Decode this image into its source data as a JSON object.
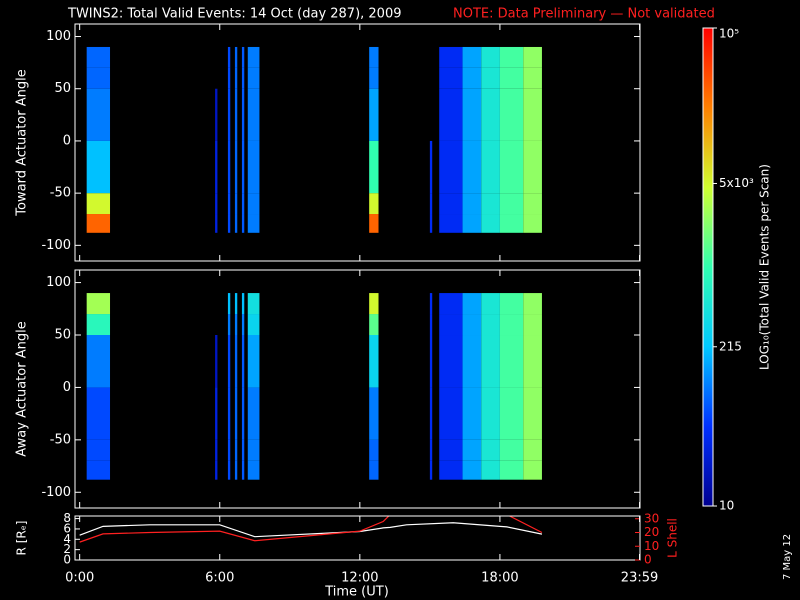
{
  "chart_data": {
    "type": "spectrogram",
    "title": "TWINS2: Total Valid Events: 14 Oct (day 287), 2009",
    "note": "NOTE: Data Preliminary — Not validated",
    "xlabel": "Time (UT)",
    "xlim": [
      -0.2,
      24
    ],
    "xticks": [
      {
        "value": 0,
        "label": "0:00"
      },
      {
        "value": 6,
        "label": "6:00"
      },
      {
        "value": 12,
        "label": "12:00"
      },
      {
        "value": 18,
        "label": "18:00"
      },
      {
        "value": 23.98,
        "label": "23:59"
      }
    ],
    "ylim": [
      -115,
      112
    ],
    "yticks": [
      -100,
      -50,
      0,
      50,
      100
    ],
    "angle_edges": [
      -88,
      -70,
      -50,
      0,
      50,
      70,
      90
    ],
    "band_edges": [
      [
        0.3,
        1.3
      ],
      [
        5.8,
        5.9
      ],
      [
        6.35,
        6.45
      ],
      [
        6.65,
        6.75
      ],
      [
        6.95,
        7.05
      ],
      [
        7.2,
        7.7
      ],
      [
        12.4,
        12.8
      ],
      [
        15.0,
        15.1
      ],
      [
        15.4,
        16.4
      ],
      [
        16.4,
        17.2
      ],
      [
        17.2,
        18.0
      ],
      [
        18.0,
        19.0
      ],
      [
        19.0,
        19.8
      ]
    ],
    "panels": [
      {
        "ylabel": "Toward Actuator Angle",
        "values": [
          [
            30000,
            5000,
            200,
            100,
            80,
            80
          ],
          [
            30,
            30,
            30,
            20,
            null,
            null
          ],
          [
            60,
            60,
            60,
            60,
            60,
            60
          ],
          [
            80,
            80,
            80,
            80,
            80,
            80
          ],
          [
            70,
            70,
            70,
            70,
            70,
            70
          ],
          [
            100,
            100,
            100,
            100,
            100,
            100
          ],
          [
            30000,
            5000,
            1000,
            150,
            100,
            100
          ],
          [
            40,
            40,
            40,
            null,
            null,
            null
          ],
          [
            40,
            40,
            40,
            40,
            40,
            40
          ],
          [
            150,
            150,
            150,
            150,
            150,
            150
          ],
          [
            500,
            500,
            500,
            500,
            500,
            500
          ],
          [
            1200,
            1200,
            1200,
            1200,
            1200,
            1200
          ],
          [
            2500,
            2500,
            2500,
            2500,
            2500,
            2500
          ]
        ]
      },
      {
        "ylabel": "Away Actuator Angle",
        "values": [
          [
            60,
            60,
            60,
            100,
            800,
            3000
          ],
          [
            30,
            30,
            30,
            20,
            null,
            null
          ],
          [
            60,
            60,
            60,
            60,
            100,
            200
          ],
          [
            80,
            80,
            80,
            80,
            100,
            200
          ],
          [
            70,
            70,
            70,
            70,
            100,
            200
          ],
          [
            100,
            100,
            100,
            150,
            300,
            400
          ],
          [
            80,
            80,
            100,
            300,
            1500,
            5000
          ],
          [
            40,
            40,
            40,
            40,
            40,
            40
          ],
          [
            40,
            40,
            40,
            40,
            40,
            40
          ],
          [
            150,
            150,
            150,
            150,
            150,
            150
          ],
          [
            500,
            500,
            500,
            500,
            500,
            500
          ],
          [
            1200,
            1200,
            1200,
            1200,
            1200,
            1200
          ],
          [
            2500,
            2500,
            2500,
            2500,
            2500,
            2500
          ]
        ]
      }
    ],
    "colorbar": {
      "label": "LOG₁₀(Total Valid Events per Scan)",
      "lim": [
        10,
        100000
      ],
      "log": true,
      "ticks": [
        10,
        215,
        {
          "value": 5000,
          "label": "5x10³"
        },
        {
          "value": 100000,
          "label": "10⁵"
        }
      ],
      "colormap": [
        "#000090",
        "#0030ff",
        "#00c8ff",
        "#30ffb0",
        "#d0ff30",
        "#ff8000",
        "#ff0000"
      ]
    },
    "orbit": {
      "x": [
        0,
        1,
        3,
        6,
        7.5,
        12,
        13,
        13.3,
        14,
        16,
        18,
        18.3,
        19.8
      ],
      "ylabel": "R [Rₑ]",
      "y2label": "L Shell",
      "ylim": [
        0,
        8.5
      ],
      "yticks": [
        0,
        2,
        4,
        6,
        8
      ],
      "y2lim": [
        0,
        32
      ],
      "y2ticks": [
        0,
        10,
        20,
        30
      ],
      "series": [
        {
          "name": "R",
          "color": "#ffffff",
          "values": [
            4.8,
            6.5,
            6.8,
            6.8,
            4.5,
            5.5,
            6.2,
            6.3,
            6.8,
            7.2,
            6.5,
            6.4,
            5.0
          ]
        },
        {
          "name": "L Shell",
          "color": "#ff2020",
          "axis": "y2",
          "values": [
            13,
            19,
            20,
            21,
            14,
            21,
            28,
            33,
            null,
            null,
            null,
            33,
            20
          ]
        }
      ]
    },
    "date_stamp": "7 May 12"
  }
}
